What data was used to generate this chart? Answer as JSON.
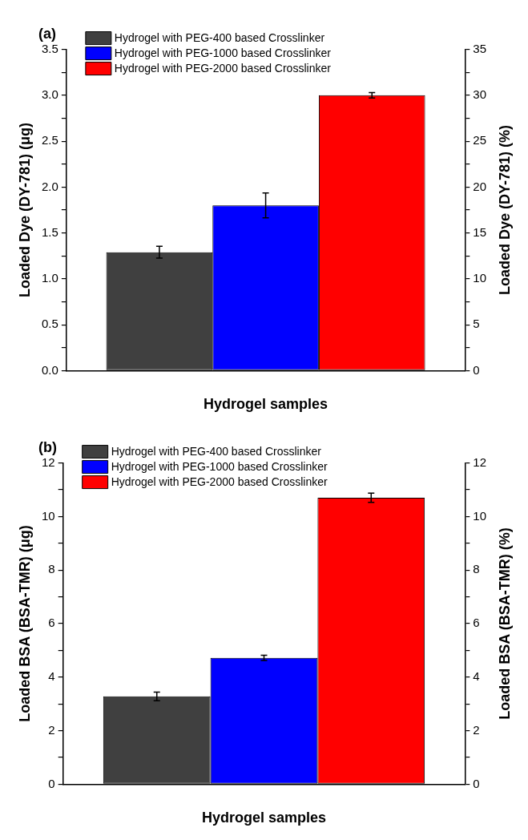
{
  "chart_data": [
    {
      "type": "bar",
      "title": "(a)",
      "xlabel": "Hydrogel samples",
      "ylabel": "Loaded Dye (DY-781) (μg)",
      "y2label": "Loaded Dye (DY-781) (%)",
      "categories": [
        null
      ],
      "series": [
        {
          "name": "Hydrogel with PEG-400 based Crosslinker",
          "color": "#404040",
          "values": [
            1.29
          ],
          "errors": [
            0.065
          ]
        },
        {
          "name": "Hydrogel with PEG-1000 based Crosslinker",
          "color": "#0000ff",
          "values": [
            1.8
          ],
          "errors": [
            0.135
          ]
        },
        {
          "name": "Hydrogel with PEG-2000 based Crosslinker",
          "color": "#ff0000",
          "values": [
            3.0
          ],
          "errors": [
            0.03
          ]
        }
      ],
      "ylim": [
        0,
        3.5
      ],
      "yticks": [
        {
          "value": 0,
          "label": "0.0"
        },
        {
          "value": 0.25,
          "label": null
        },
        0.5,
        {
          "value": 0.75,
          "label": null
        },
        {
          "value": 1,
          "label": "1.0"
        },
        {
          "value": 1.25,
          "label": null
        },
        1.5,
        {
          "value": 1.75,
          "label": null
        },
        {
          "value": 2,
          "label": "2.0"
        },
        {
          "value": 2.25,
          "label": null
        },
        2.5,
        {
          "value": 2.75,
          "label": null
        },
        {
          "value": 3,
          "label": "3.0"
        },
        {
          "value": 3.25,
          "label": null
        },
        3.5
      ],
      "y2lim": [
        0,
        35
      ],
      "y2ticks": [
        0,
        {
          "value": 2.5,
          "label": null
        },
        5,
        {
          "value": 7.5,
          "label": null
        },
        10,
        {
          "value": 12.5,
          "label": null
        },
        15,
        {
          "value": 17.5,
          "label": null
        },
        20,
        {
          "value": 22.5,
          "label": null
        },
        25,
        {
          "value": 27.5,
          "label": null
        },
        30,
        {
          "value": 32.5,
          "label": null
        },
        35
      ],
      "legend": "top left"
    },
    {
      "type": "bar",
      "title": "(b)",
      "xlabel": "Hydrogel samples",
      "ylabel": "Loaded BSA (BSA-TMR) (μg)",
      "y2label": "Loaded BSA (BSA-TMR) (%)",
      "categories": [
        null
      ],
      "series": [
        {
          "name": "Hydrogel with PEG-400 based Crosslinker",
          "color": "#404040",
          "values": [
            3.28
          ],
          "errors": [
            0.16
          ]
        },
        {
          "name": "Hydrogel with PEG-1000 based Crosslinker",
          "color": "#0000ff",
          "values": [
            4.72
          ],
          "errors": [
            0.1
          ]
        },
        {
          "name": "Hydrogel with PEG-2000 based Crosslinker",
          "color": "#ff0000",
          "values": [
            10.7
          ],
          "errors": [
            0.17
          ]
        }
      ],
      "ylim": [
        0,
        12
      ],
      "yticks": [
        0,
        {
          "value": 1,
          "label": null
        },
        2,
        {
          "value": 3,
          "label": null
        },
        4,
        {
          "value": 5,
          "label": null
        },
        6,
        {
          "value": 7,
          "label": null
        },
        8,
        {
          "value": 9,
          "label": null
        },
        10,
        {
          "value": 11,
          "label": null
        },
        12
      ],
      "y2lim": [
        0,
        12
      ],
      "y2ticks": [
        0,
        {
          "value": 1,
          "label": null
        },
        2,
        {
          "value": 3,
          "label": null
        },
        4,
        {
          "value": 5,
          "label": null
        },
        6,
        {
          "value": 7,
          "label": null
        },
        8,
        {
          "value": 9,
          "label": null
        },
        10,
        {
          "value": 11,
          "label": null
        },
        12
      ],
      "legend": "top left"
    }
  ]
}
